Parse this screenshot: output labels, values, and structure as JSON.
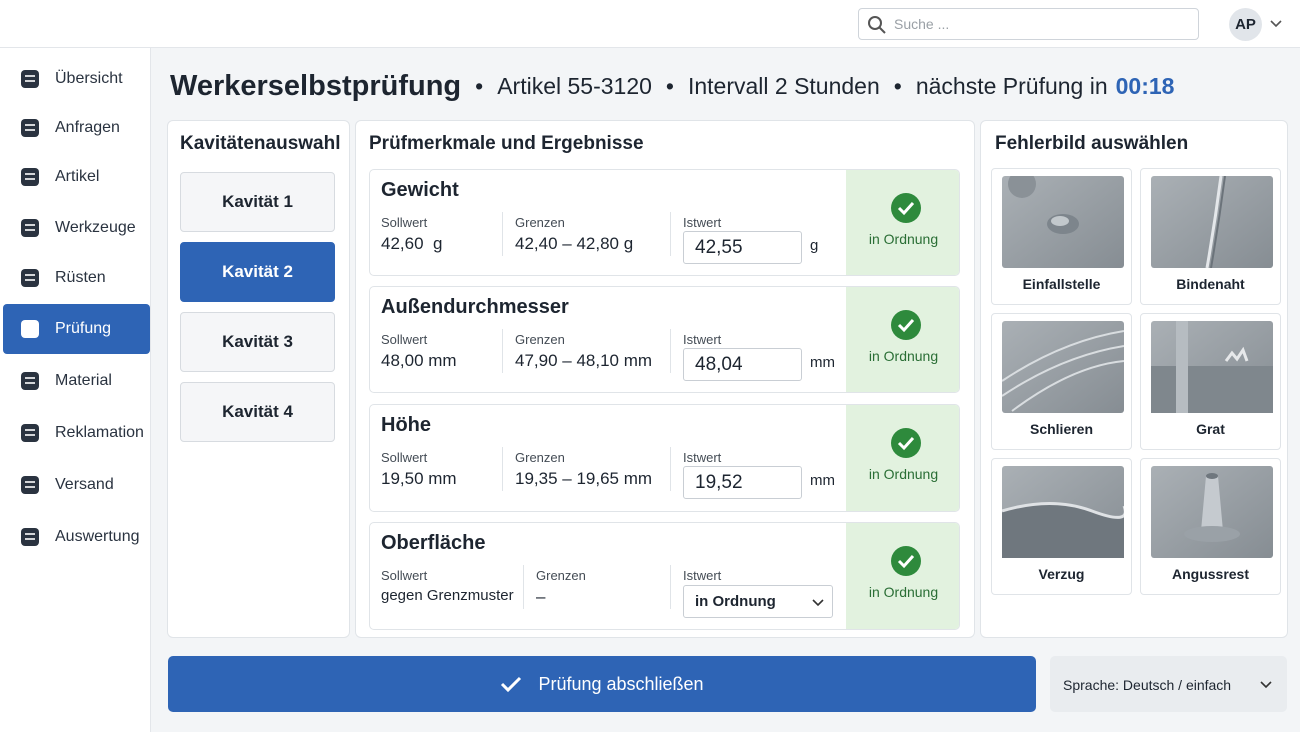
{
  "search": {
    "placeholder": "Suche ..."
  },
  "user": {
    "initials": "AP"
  },
  "nav": [
    {
      "label": "Übersicht"
    },
    {
      "label": "Anfragen"
    },
    {
      "label": "Artikel"
    },
    {
      "label": "Werkzeuge"
    },
    {
      "label": "Rüsten"
    },
    {
      "label": "Prüfung",
      "active": true
    },
    {
      "label": "Material"
    },
    {
      "label": "Reklamation"
    },
    {
      "label": "Versand"
    },
    {
      "label": "Auswertung"
    }
  ],
  "header": {
    "title": "Werkerselbstprüfung",
    "article": "Artikel 55-3120",
    "interval": "Intervall 2 Stunden",
    "next_label": "nächste Prüfung in",
    "next_time": "00:18"
  },
  "cavities": {
    "title": "Kavitätenauswahl",
    "items": [
      {
        "label": "Kavität 1"
      },
      {
        "label": "Kavität 2",
        "selected": true
      },
      {
        "label": "Kavität 3"
      },
      {
        "label": "Kavität 4"
      }
    ]
  },
  "checks": {
    "title": "Prüfmerkmale und Ergebnisse",
    "rows": [
      {
        "name": "Gewicht",
        "setpoint_label": "Sollwert",
        "setpoint": "42,60  g",
        "limits_label": "Grenzen",
        "limits": "42,40 – 42,80 g",
        "actual_label": "Istwert",
        "actual": "42,55",
        "actual_unit": "g",
        "status": "in Ordnung"
      },
      {
        "name": "Außendurchmesser",
        "setpoint_label": "Sollwert",
        "setpoint": "48,00 mm",
        "limits_label": "Grenzen",
        "limits": "47,90 – 48,10 mm",
        "actual_label": "Istwert",
        "actual": "48,04",
        "actual_unit": "mm",
        "status": "in Ordnung"
      },
      {
        "name": "Höhe",
        "setpoint_label": "Sollwert",
        "setpoint": "19,50 mm",
        "limits_label": "Grenzen",
        "limits": "19,35 – 19,65 mm",
        "actual_label": "Istwert",
        "actual": "19,52",
        "actual_unit": "mm",
        "status": "in Ordnung"
      },
      {
        "name": "Oberfläche",
        "setpoint_label": "Sollwert",
        "setpoint": "gegen Grenzmuster",
        "limits_label": "Grenzen",
        "limits": "–",
        "actual_label": "Istwert",
        "actual": "in Ordnung",
        "actual_select": true,
        "status": "in Ordnung"
      }
    ]
  },
  "defects": {
    "title": "Fehlerbild auswählen",
    "items": [
      "Einfallstelle",
      "Bindenaht",
      "Schlieren",
      "Grat",
      "Verzug",
      "Angussrest"
    ]
  },
  "footer": {
    "submit": "Prüfung abschließen",
    "language": "Sprache: Deutsch / einfach"
  }
}
